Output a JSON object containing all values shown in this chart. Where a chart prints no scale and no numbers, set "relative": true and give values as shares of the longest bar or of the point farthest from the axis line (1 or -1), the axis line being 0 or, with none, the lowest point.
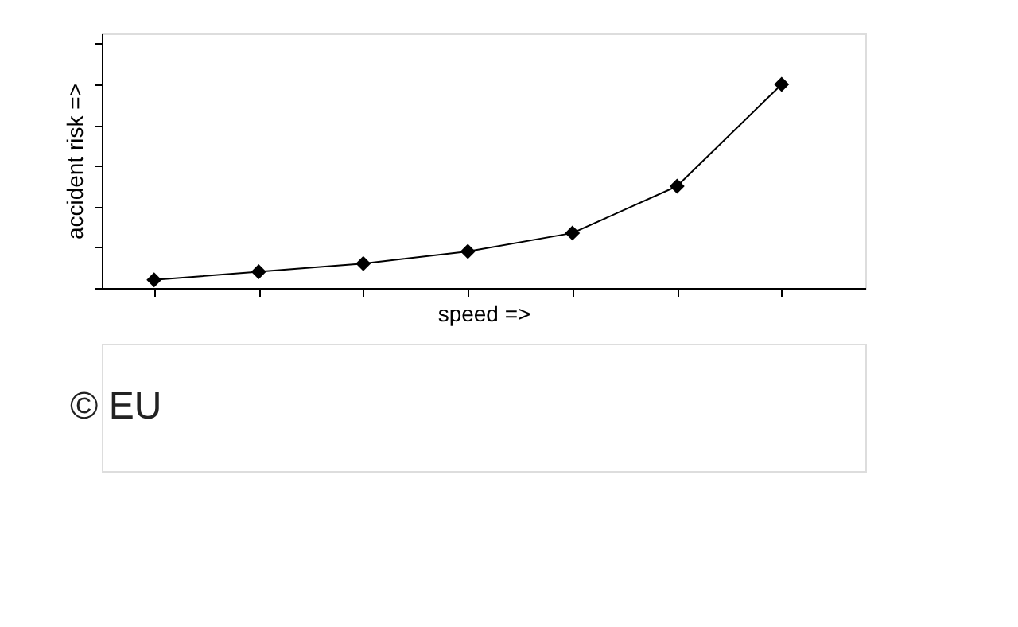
{
  "chart_data": {
    "type": "line",
    "relative": true,
    "xlabel": "speed =>",
    "ylabel": "accident risk =>",
    "categories": [
      null,
      null,
      null,
      null,
      null,
      null,
      null
    ],
    "values": [
      0.04,
      0.08,
      0.12,
      0.18,
      0.27,
      0.5,
      1.0
    ],
    "color": "#000000",
    "marker": "diamond",
    "line_style": "solid",
    "grid": false,
    "annotations": [
      "© EU"
    ]
  }
}
